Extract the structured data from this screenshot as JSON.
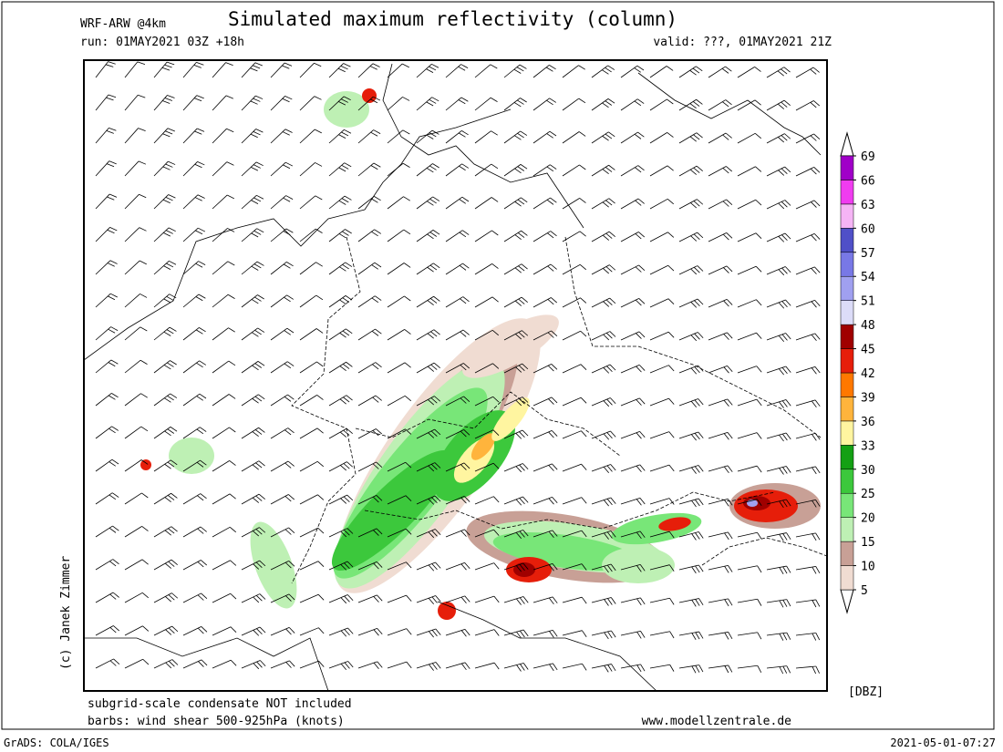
{
  "header": {
    "model": "WRF-ARW @4km",
    "title": "Simulated maximum reflectivity (column)",
    "run": "run: 01MAY2021 03Z +18h",
    "valid": "valid: ???, 01MAY2021 21Z"
  },
  "copyright": "(c) Janek Zimmer",
  "colorbar": {
    "unit": "[DBZ]",
    "levels": [
      5,
      10,
      15,
      20,
      25,
      30,
      33,
      36,
      39,
      42,
      45,
      48,
      51,
      54,
      57,
      60,
      63,
      66,
      69
    ],
    "colors": [
      "#f0dcd2",
      "#c8a096",
      "#bef0b4",
      "#78e678",
      "#3cc83c",
      "#14a014",
      "#fff5a0",
      "#ffb43c",
      "#ff7800",
      "#e61e0a",
      "#a00000",
      "#dcdcf8",
      "#a0a0f0",
      "#7878e6",
      "#5050c8",
      "#f5b4f5",
      "#f03cf0",
      "#a000c8"
    ]
  },
  "notes": {
    "condensate": "subgrid-scale condensate NOT included",
    "barbs": "barbs: wind shear 500-925hPa (knots)",
    "website": "www.modellzentrale.de"
  },
  "footer": {
    "software": "GrADS: COLA/IGES",
    "timestamp": "2021-05-01-07:27"
  }
}
